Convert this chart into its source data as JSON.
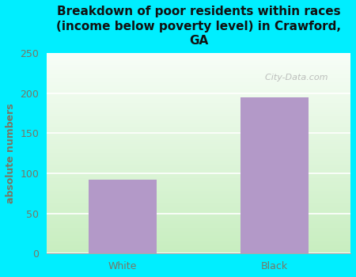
{
  "categories": [
    "White",
    "Black"
  ],
  "values": [
    92,
    195
  ],
  "bar_color": "#b399c8",
  "title": "Breakdown of poor residents within races\n(income below poverty level) in Crawford,\nGA",
  "ylabel": "absolute numbers",
  "ylim": [
    0,
    250
  ],
  "yticks": [
    0,
    50,
    100,
    150,
    200,
    250
  ],
  "background_color": "#00eeff",
  "plot_bg_colors": [
    "#f0fce8",
    "#ffffff"
  ],
  "watermark": "  City-Data.com",
  "title_fontsize": 11,
  "ylabel_fontsize": 9,
  "tick_fontsize": 9,
  "label_color": "#777766",
  "title_color": "#111111"
}
